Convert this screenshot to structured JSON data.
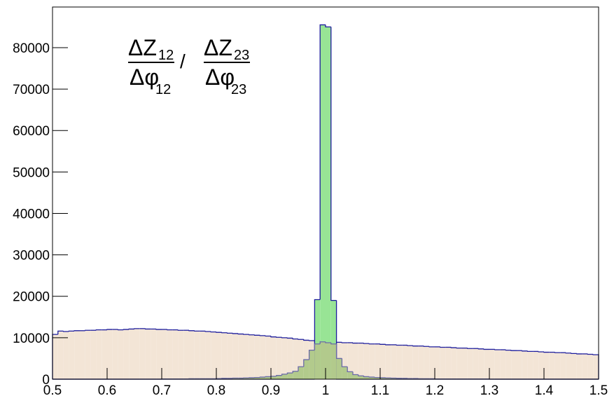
{
  "chart_data": {
    "type": "histogram",
    "formula": {
      "left": {
        "numerator": "ΔZ",
        "numerator_sub": "12",
        "denominator": "Δφ",
        "denominator_sub": "12"
      },
      "separator": "/",
      "right": {
        "numerator": "ΔZ",
        "numerator_sub": "23",
        "denominator": "Δφ",
        "denominator_sub": "23"
      }
    },
    "bins": [
      0.5,
      0.51,
      0.52,
      0.53,
      0.54,
      0.55,
      0.56,
      0.57,
      0.58,
      0.59,
      0.6,
      0.61,
      0.62,
      0.63,
      0.64,
      0.65,
      0.66,
      0.67,
      0.68,
      0.69,
      0.7,
      0.71,
      0.72,
      0.73,
      0.74,
      0.75,
      0.76,
      0.77,
      0.78,
      0.79,
      0.8,
      0.81,
      0.82,
      0.83,
      0.84,
      0.85,
      0.86,
      0.87,
      0.88,
      0.89,
      0.9,
      0.91,
      0.92,
      0.93,
      0.94,
      0.95,
      0.96,
      0.97,
      0.98,
      0.99,
      1.0,
      1.01,
      1.02,
      1.03,
      1.04,
      1.05,
      1.06,
      1.07,
      1.08,
      1.09,
      1.1,
      1.11,
      1.12,
      1.13,
      1.14,
      1.15,
      1.16,
      1.17,
      1.18,
      1.19,
      1.2,
      1.21,
      1.22,
      1.23,
      1.24,
      1.25,
      1.26,
      1.27,
      1.28,
      1.29,
      1.3,
      1.31,
      1.32,
      1.33,
      1.34,
      1.35,
      1.36,
      1.37,
      1.38,
      1.39,
      1.4,
      1.41,
      1.42,
      1.43,
      1.44,
      1.45,
      1.46,
      1.47,
      1.48,
      1.49,
      1.5
    ],
    "series": [
      {
        "color": "#f3e5d6",
        "line_color": "#1c1c9c",
        "values": [
          10800,
          11600,
          11500,
          11600,
          11700,
          11700,
          11800,
          11800,
          11900,
          11900,
          12000,
          12000,
          11900,
          12000,
          12100,
          12200,
          12200,
          12100,
          12100,
          12000,
          12000,
          11900,
          11900,
          11800,
          11800,
          11700,
          11600,
          11600,
          11500,
          11400,
          11300,
          11200,
          11100,
          11000,
          10900,
          10800,
          10700,
          10600,
          10500,
          10400,
          10200,
          10100,
          10000,
          9900,
          9700,
          9600,
          9400,
          9300,
          9200,
          9100,
          9000,
          8900,
          8900,
          8800,
          8800,
          8700,
          8700,
          8600,
          8500,
          8500,
          8400,
          8300,
          8300,
          8200,
          8200,
          8100,
          8000,
          8000,
          7900,
          7800,
          7800,
          7700,
          7700,
          7600,
          7500,
          7500,
          7400,
          7400,
          7300,
          7200,
          7200,
          7100,
          7100,
          7000,
          6900,
          6900,
          6800,
          6700,
          6700,
          6600,
          6500,
          6500,
          6400,
          6400,
          6300,
          6200,
          6100,
          6100,
          6000,
          5900
        ]
      },
      {
        "color": "#98e495",
        "line_color": "#1c1c9c",
        "values": [
          0,
          0,
          0,
          0,
          0,
          0,
          0,
          0,
          0,
          0,
          0,
          0,
          0,
          0,
          0,
          0,
          0,
          0,
          0,
          0,
          0,
          0,
          0,
          0,
          0,
          0,
          0,
          0,
          0,
          0,
          0,
          0,
          0,
          0,
          0,
          0,
          0,
          0,
          0,
          0,
          0,
          0,
          0,
          0,
          0,
          0,
          0,
          0,
          19200,
          85500,
          85000,
          19000,
          0,
          0,
          0,
          0,
          0,
          0,
          0,
          0,
          0,
          0,
          0,
          0,
          0,
          0,
          0,
          0,
          0,
          0,
          0,
          0,
          0,
          0,
          0,
          0,
          0,
          0,
          0,
          0,
          0,
          0,
          0,
          0,
          0,
          0,
          0,
          0,
          0,
          0,
          0,
          0,
          0,
          0,
          0,
          0,
          0,
          0,
          0,
          0
        ]
      },
      {
        "color": "#b2ca8c",
        "line_color": "#6a6aa8",
        "values": [
          0,
          0,
          0,
          0,
          0,
          0,
          0,
          0,
          0,
          0,
          0,
          0,
          0,
          0,
          0,
          0,
          0,
          0,
          0,
          0,
          50,
          50,
          50,
          50,
          50,
          100,
          100,
          100,
          100,
          100,
          150,
          200,
          200,
          250,
          250,
          300,
          350,
          400,
          500,
          600,
          700,
          900,
          1200,
          1500,
          1900,
          3000,
          4700,
          7000,
          8500,
          9000,
          8800,
          8500,
          5000,
          3000,
          1800,
          1100,
          800,
          600,
          500,
          400,
          350,
          300,
          250,
          200,
          200,
          150,
          150,
          100,
          100,
          100,
          50,
          50,
          50,
          50,
          50,
          50,
          50,
          50,
          50,
          50,
          0,
          0,
          0,
          0,
          0,
          0,
          0,
          0,
          0,
          0,
          0,
          0,
          0,
          0,
          0,
          0,
          0,
          0,
          0,
          0
        ]
      }
    ],
    "xlim": [
      0.5,
      1.5
    ],
    "xticks": [
      0.5,
      0.6,
      0.7,
      0.8,
      0.9,
      1,
      1.1,
      1.2,
      1.3,
      1.4,
      1.5
    ],
    "ylim": [
      0,
      89800
    ],
    "yticks": [
      0,
      10000,
      20000,
      30000,
      40000,
      50000,
      60000,
      70000,
      80000
    ]
  }
}
